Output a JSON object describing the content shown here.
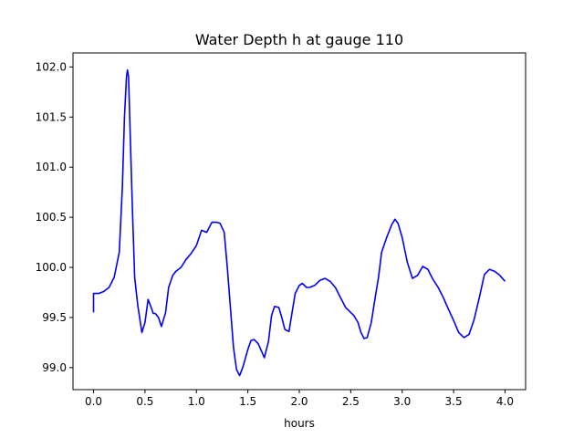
{
  "chart_data": {
    "type": "line",
    "title": "Water Depth h at gauge 110",
    "xlabel": "hours",
    "ylabel": "",
    "xlim": [
      -0.2,
      4.2
    ],
    "ylim": [
      98.78,
      102.14
    ],
    "xticks": [
      0.0,
      0.5,
      1.0,
      1.5,
      2.0,
      2.5,
      3.0,
      3.5,
      4.0
    ],
    "xtick_labels": [
      "0.0",
      "0.5",
      "1.0",
      "1.5",
      "2.0",
      "2.5",
      "3.0",
      "3.5",
      "4.0"
    ],
    "yticks": [
      99.0,
      99.5,
      100.0,
      100.5,
      101.0,
      101.5,
      102.0
    ],
    "ytick_labels": [
      "99.0",
      "99.5",
      "100.0",
      "100.5",
      "101.0",
      "101.5",
      "102.0"
    ],
    "grid": false,
    "series": [
      {
        "color": "#0000ff",
        "x": [
          0.0,
          0.0,
          0.05,
          0.1,
          0.15,
          0.2,
          0.25,
          0.28,
          0.3,
          0.32,
          0.33,
          0.34,
          0.36,
          0.38,
          0.4,
          0.43,
          0.47,
          0.5,
          0.53,
          0.56,
          0.58,
          0.6,
          0.63,
          0.66,
          0.7,
          0.73,
          0.77,
          0.8,
          0.85,
          0.9,
          0.95,
          1.0,
          1.05,
          1.1,
          1.15,
          1.2,
          1.23,
          1.27,
          1.3,
          1.33,
          1.36,
          1.39,
          1.42,
          1.45,
          1.5,
          1.53,
          1.56,
          1.6,
          1.63,
          1.66,
          1.7,
          1.73,
          1.76,
          1.8,
          1.83,
          1.86,
          1.9,
          1.93,
          1.96,
          2.0,
          2.03,
          2.07,
          2.1,
          2.15,
          2.2,
          2.25,
          2.3,
          2.35,
          2.4,
          2.45,
          2.5,
          2.53,
          2.57,
          2.6,
          2.63,
          2.66,
          2.7,
          2.73,
          2.77,
          2.8,
          2.85,
          2.9,
          2.93,
          2.96,
          3.0,
          3.05,
          3.1,
          3.15,
          3.2,
          3.25,
          3.3,
          3.35,
          3.4,
          3.45,
          3.5,
          3.55,
          3.6,
          3.65,
          3.7,
          3.75,
          3.8,
          3.85,
          3.9,
          3.95,
          4.0
        ],
        "y": [
          99.55,
          99.74,
          99.74,
          99.76,
          99.8,
          99.9,
          100.15,
          100.8,
          101.5,
          101.9,
          101.97,
          101.9,
          101.2,
          100.5,
          99.9,
          99.62,
          99.35,
          99.45,
          99.68,
          99.6,
          99.54,
          99.54,
          99.5,
          99.41,
          99.55,
          99.8,
          99.92,
          99.96,
          100.0,
          100.08,
          100.14,
          100.22,
          100.37,
          100.35,
          100.45,
          100.45,
          100.44,
          100.35,
          100.0,
          99.6,
          99.2,
          98.98,
          98.92,
          99.0,
          99.18,
          99.27,
          99.28,
          99.24,
          99.17,
          99.1,
          99.26,
          99.52,
          99.61,
          99.6,
          99.5,
          99.38,
          99.36,
          99.55,
          99.74,
          99.82,
          99.84,
          99.8,
          99.8,
          99.82,
          99.87,
          99.89,
          99.86,
          99.8,
          99.7,
          99.6,
          99.55,
          99.52,
          99.45,
          99.35,
          99.29,
          99.3,
          99.45,
          99.65,
          99.9,
          100.15,
          100.3,
          100.43,
          100.48,
          100.44,
          100.3,
          100.05,
          99.89,
          99.92,
          100.01,
          99.98,
          99.88,
          99.8,
          99.7,
          99.58,
          99.47,
          99.35,
          99.3,
          99.33,
          99.48,
          99.7,
          99.93,
          99.98,
          99.96,
          99.92,
          99.86
        ]
      }
    ]
  }
}
